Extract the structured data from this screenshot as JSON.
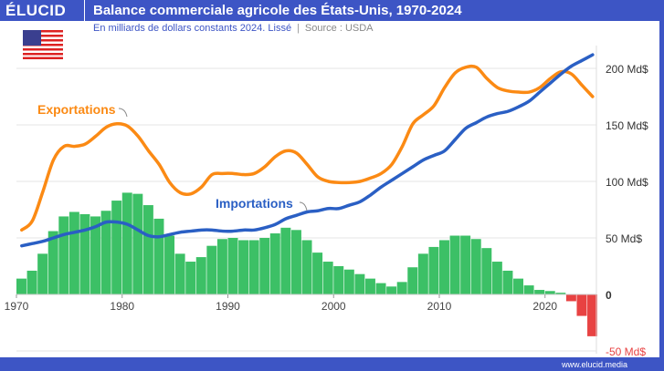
{
  "header": {
    "logo": "ÉLUCID",
    "title": "Balance commerciale agricole des États-Unis, 1970-2024"
  },
  "subtitle": {
    "text": "En milliards de dollars constants 2024. Lissé",
    "source": "Source : USDA"
  },
  "footer": {
    "url": "www.elucid.media"
  },
  "colors": {
    "brand": "#3d55c5",
    "exports": "#fb8a14",
    "imports": "#2a5fc4",
    "surplus": "#3cc066",
    "deficit": "#e84242"
  },
  "chart_data": {
    "type": "bar+line",
    "title": "Balance commerciale agricole des États-Unis, 1970-2024",
    "ylim": [
      -50,
      220
    ],
    "yticks": [
      {
        "v": 200,
        "label": "200 Md$"
      },
      {
        "v": 150,
        "label": "150 Md$"
      },
      {
        "v": 100,
        "label": "100 Md$"
      },
      {
        "v": 50,
        "label": "50 Md$"
      },
      {
        "v": 0,
        "label": "0"
      },
      {
        "v": -50,
        "label": "-50 Md$"
      }
    ],
    "xticks": [
      1970,
      1980,
      1990,
      2000,
      2010,
      2020
    ],
    "x_start": 1970,
    "balance": [
      14,
      21,
      36,
      56,
      69,
      73,
      71,
      69,
      74,
      83,
      90,
      89,
      79,
      67,
      52,
      36,
      29,
      33,
      43,
      49,
      50,
      48,
      48,
      50,
      54,
      59,
      57,
      48,
      37,
      29,
      25,
      22,
      18,
      14,
      10,
      7,
      11,
      24,
      36,
      42,
      48,
      52,
      52,
      49,
      41,
      29,
      21,
      14,
      8,
      4,
      3,
      1.5,
      -6,
      -19,
      -37
    ],
    "series": [
      {
        "name": "Exportations",
        "values": [
          57,
          65,
          91,
          119,
          131,
          131,
          133,
          140,
          148,
          151,
          149,
          140,
          127,
          115,
          99,
          90,
          89,
          95,
          106,
          107,
          107,
          106,
          107,
          113,
          122,
          127,
          125,
          115,
          104,
          100,
          99,
          99,
          100,
          103,
          107,
          115,
          131,
          151,
          159,
          167,
          183,
          196,
          201,
          201,
          191,
          183,
          180,
          179,
          179,
          183,
          191,
          197,
          195,
          185,
          175
        ]
      },
      {
        "name": "Importations",
        "values": [
          43,
          45,
          47,
          50,
          53,
          55,
          57,
          60,
          64,
          64,
          62,
          57,
          52,
          51,
          53,
          55,
          56,
          57,
          57,
          56,
          56,
          57,
          57,
          59,
          62,
          67,
          70,
          73,
          74,
          76,
          76,
          79,
          82,
          88,
          95,
          101,
          107,
          113,
          119,
          123,
          127,
          137,
          147,
          152,
          157,
          160,
          162,
          166,
          171,
          179,
          187,
          195,
          202,
          207,
          212
        ]
      }
    ],
    "annotations": [
      "Exportations",
      "Importations"
    ]
  }
}
